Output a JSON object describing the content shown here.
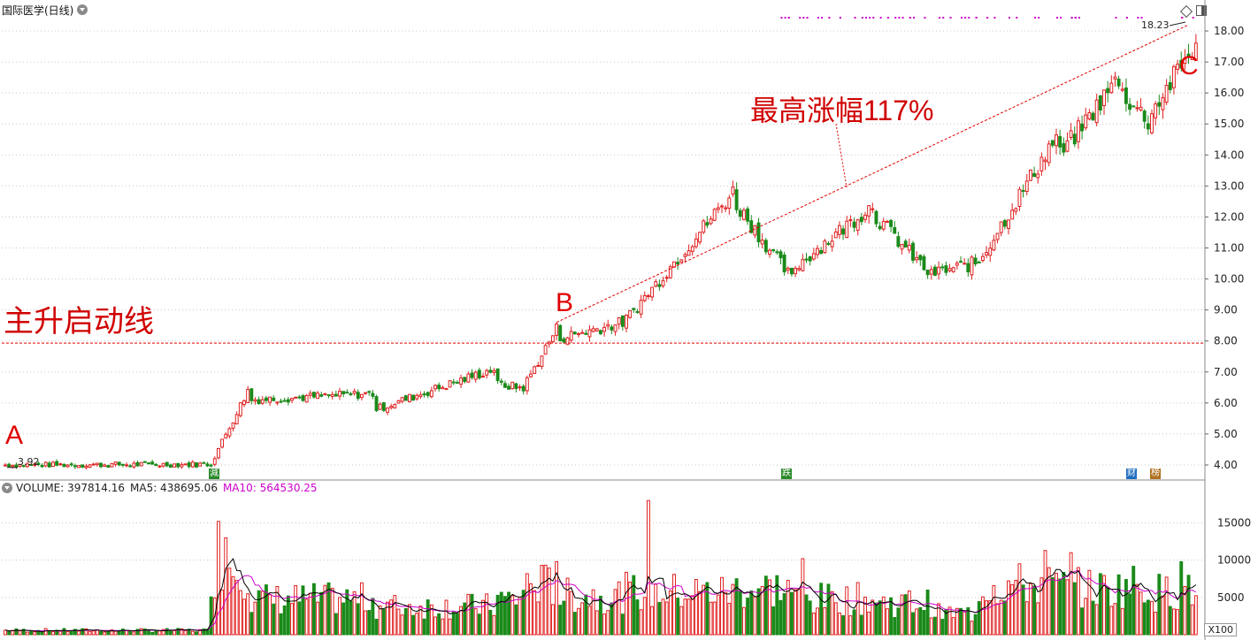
{
  "header": {
    "title": "国际医学(日线)"
  },
  "volume_header": {
    "volume": "VOLUME: 397814.16",
    "ma5": "MA5: 438695.06",
    "ma10": "MA10: 564530.25",
    "ma10_color": "#cc00cc"
  },
  "annotations": {
    "marker_a": "A",
    "marker_b": "B",
    "marker_c": "C",
    "main_line_label": "主升启动线",
    "gain_label": "最高涨幅117%",
    "low_price_label": "3.92",
    "high_price_label": "18.23",
    "event_1": "減",
    "event_2": "跌",
    "event_3": "财",
    "event_4": "榜",
    "volume_unit": "X100"
  },
  "colors": {
    "up": "#e02020",
    "down": "#1a8a1a",
    "ma5": "#000000",
    "ma10": "#cc00cc",
    "annotation": "#e00000",
    "grid": "#c8c8c8"
  },
  "chart_data": {
    "type": "candlestick",
    "price_axis": {
      "ticks": [
        4.0,
        5.0,
        6.0,
        7.0,
        8.0,
        9.0,
        10.0,
        11.0,
        12.0,
        13.0,
        14.0,
        15.0,
        16.0,
        17.0,
        18.0
      ],
      "ylim": [
        3.6,
        18.6
      ]
    },
    "volume_axis": {
      "ticks": [
        5000,
        10000,
        15000
      ],
      "ylim": [
        0,
        18500
      ],
      "unit": "X100"
    },
    "main_launch_line_price": 7.93,
    "low_price": 3.92,
    "high_price": 18.23,
    "max_gain_percent": 117,
    "phases": [
      {
        "from": 0,
        "to": 55,
        "start": 4.0,
        "end": 4.02,
        "vol": 600
      },
      {
        "from": 56,
        "to": 66,
        "start": 4.05,
        "end": 6.4,
        "vol": 9500
      },
      {
        "from": 67,
        "to": 100,
        "start": 6.1,
        "end": 6.3,
        "vol": 5000
      },
      {
        "from": 101,
        "to": 133,
        "start": 5.8,
        "end": 7.1,
        "vol": 4000
      },
      {
        "from": 134,
        "to": 140,
        "start": 6.6,
        "end": 6.5,
        "vol": 5000
      },
      {
        "from": 141,
        "to": 150,
        "start": 6.5,
        "end": 8.4,
        "vol": 7000
      },
      {
        "from": 151,
        "to": 168,
        "start": 8.1,
        "end": 8.6,
        "vol": 5500
      },
      {
        "from": 169,
        "to": 198,
        "start": 8.7,
        "end": 12.8,
        "vol": 6000
      },
      {
        "from": 199,
        "to": 214,
        "start": 12.4,
        "end": 10.0,
        "vol": 6500
      },
      {
        "from": 215,
        "to": 236,
        "start": 10.4,
        "end": 12.4,
        "vol": 5000
      },
      {
        "from": 237,
        "to": 252,
        "start": 12.0,
        "end": 10.1,
        "vol": 4500
      },
      {
        "from": 253,
        "to": 264,
        "start": 10.2,
        "end": 10.5,
        "vol": 3000
      },
      {
        "from": 265,
        "to": 286,
        "start": 10.6,
        "end": 14.6,
        "vol": 7000
      },
      {
        "from": 287,
        "to": 303,
        "start": 14.0,
        "end": 16.5,
        "vol": 6500
      },
      {
        "from": 304,
        "to": 311,
        "start": 16.0,
        "end": 15.1,
        "vol": 7000
      },
      {
        "from": 312,
        "to": 324,
        "start": 15.4,
        "end": 17.6,
        "vol": 6000
      }
    ],
    "volume_spikes": [
      {
        "index": 58,
        "value": 15200
      },
      {
        "index": 60,
        "value": 13000
      },
      {
        "index": 150,
        "value": 9800
      },
      {
        "index": 175,
        "value": 18000
      },
      {
        "index": 217,
        "value": 10200
      },
      {
        "index": 283,
        "value": 11300
      },
      {
        "index": 290,
        "value": 11000
      },
      {
        "index": 320,
        "value": 9800
      }
    ]
  }
}
